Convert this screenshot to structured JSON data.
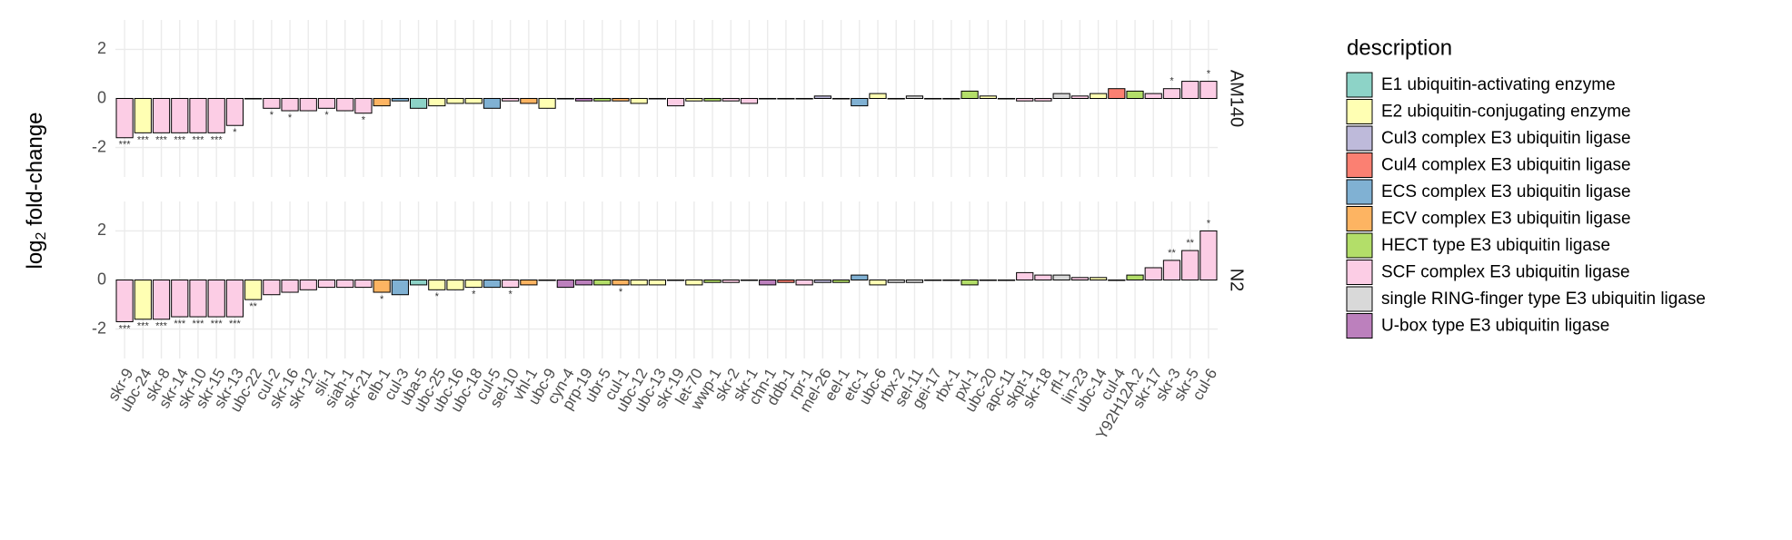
{
  "chart_data": {
    "type": "bar",
    "ylabel_parts": [
      "log",
      "2",
      " fold-change"
    ],
    "legend_title": "description",
    "ylim": [
      -3.2,
      3.2
    ],
    "yticks": [
      -2,
      0,
      2
    ],
    "grid": true,
    "groups": [
      {
        "name": "E1 ubiquitin-activating enzyme",
        "color": "#8DD3C7"
      },
      {
        "name": "E2 ubiquitin-conjugating enzyme",
        "color": "#FFFFB3"
      },
      {
        "name": "Cul3 complex E3 ubiquitin ligase",
        "color": "#BEBADA"
      },
      {
        "name": "Cul4 complex E3 ubiquitin ligase",
        "color": "#FB8072"
      },
      {
        "name": "ECS complex E3 ubiquitin ligase",
        "color": "#80B1D3"
      },
      {
        "name": "ECV complex E3 ubiquitin ligase",
        "color": "#FDB462"
      },
      {
        "name": "HECT type E3 ubiquitin ligase",
        "color": "#B3DE69"
      },
      {
        "name": "SCF complex E3 ubiquitin ligase",
        "color": "#FCCDE5"
      },
      {
        "name": "single RING-finger type E3 ubiquitin ligase",
        "color": "#D9D9D9"
      },
      {
        "name": "U-box type E3 ubiquitin ligase",
        "color": "#BC80BD"
      }
    ],
    "categories": [
      "skr-9",
      "ubc-24",
      "skr-8",
      "skr-14",
      "skr-10",
      "skr-15",
      "skr-13",
      "ubc-22",
      "cul-2",
      "skr-16",
      "skr-12",
      "sli-1",
      "siah-1",
      "skr-21",
      "elb-1",
      "cul-3",
      "uba-5",
      "ubc-25",
      "ubc-16",
      "ubc-18",
      "cul-5",
      "sel-10",
      "vhl-1",
      "ubc-9",
      "cyn-4",
      "prp-19",
      "ubr-5",
      "cul-1",
      "ubc-12",
      "ubc-13",
      "skr-19",
      "let-70",
      "wwp-1",
      "skr-2",
      "skr-1",
      "chn-1",
      "ddb-1",
      "rpr-1",
      "mel-26",
      "eel-1",
      "etc-1",
      "ubc-6",
      "rbx-2",
      "sel-11",
      "gei-17",
      "rbx-1",
      "pxl-1",
      "ubc-20",
      "apc-11",
      "skpt-1",
      "skr-18",
      "rfl-1",
      "lin-23",
      "ubc-14",
      "cul-4",
      "Y92H12A.2",
      "skr-17",
      "skr-3",
      "skr-5",
      "cul-6"
    ],
    "category_groups": [
      "SCF complex E3 ubiquitin ligase",
      "E2 ubiquitin-conjugating enzyme",
      "SCF complex E3 ubiquitin ligase",
      "SCF complex E3 ubiquitin ligase",
      "SCF complex E3 ubiquitin ligase",
      "SCF complex E3 ubiquitin ligase",
      "SCF complex E3 ubiquitin ligase",
      "E2 ubiquitin-conjugating enzyme",
      "SCF complex E3 ubiquitin ligase",
      "SCF complex E3 ubiquitin ligase",
      "SCF complex E3 ubiquitin ligase",
      "SCF complex E3 ubiquitin ligase",
      "SCF complex E3 ubiquitin ligase",
      "SCF complex E3 ubiquitin ligase",
      "ECV complex E3 ubiquitin ligase",
      "ECS complex E3 ubiquitin ligase",
      "E1 ubiquitin-activating enzyme",
      "E2 ubiquitin-conjugating enzyme",
      "E2 ubiquitin-conjugating enzyme",
      "E2 ubiquitin-conjugating enzyme",
      "ECS complex E3 ubiquitin ligase",
      "SCF complex E3 ubiquitin ligase",
      "ECV complex E3 ubiquitin ligase",
      "E2 ubiquitin-conjugating enzyme",
      "U-box type E3 ubiquitin ligase",
      "U-box type E3 ubiquitin ligase",
      "HECT type E3 ubiquitin ligase",
      "ECV complex E3 ubiquitin ligase",
      "E2 ubiquitin-conjugating enzyme",
      "E2 ubiquitin-conjugating enzyme",
      "SCF complex E3 ubiquitin ligase",
      "E2 ubiquitin-conjugating enzyme",
      "HECT type E3 ubiquitin ligase",
      "SCF complex E3 ubiquitin ligase",
      "SCF complex E3 ubiquitin ligase",
      "U-box type E3 ubiquitin ligase",
      "Cul4 complex E3 ubiquitin ligase",
      "SCF complex E3 ubiquitin ligase",
      "Cul3 complex E3 ubiquitin ligase",
      "HECT type E3 ubiquitin ligase",
      "ECS complex E3 ubiquitin ligase",
      "E2 ubiquitin-conjugating enzyme",
      "single RING-finger type E3 ubiquitin ligase",
      "single RING-finger type E3 ubiquitin ligase",
      "single RING-finger type E3 ubiquitin ligase",
      "single RING-finger type E3 ubiquitin ligase",
      "HECT type E3 ubiquitin ligase",
      "E2 ubiquitin-conjugating enzyme",
      "single RING-finger type E3 ubiquitin ligase",
      "SCF complex E3 ubiquitin ligase",
      "SCF complex E3 ubiquitin ligase",
      "single RING-finger type E3 ubiquitin ligase",
      "SCF complex E3 ubiquitin ligase",
      "E2 ubiquitin-conjugating enzyme",
      "Cul4 complex E3 ubiquitin ligase",
      "HECT type E3 ubiquitin ligase",
      "SCF complex E3 ubiquitin ligase",
      "SCF complex E3 ubiquitin ligase",
      "SCF complex E3 ubiquitin ligase",
      "SCF complex E3 ubiquitin ligase"
    ],
    "facets": [
      {
        "name": "AM140",
        "values": [
          -1.6,
          -1.4,
          -1.4,
          -1.4,
          -1.4,
          -1.4,
          -1.1,
          0,
          -0.4,
          -0.5,
          -0.5,
          -0.4,
          -0.5,
          -0.6,
          -0.3,
          -0.1,
          -0.4,
          -0.3,
          -0.2,
          -0.2,
          -0.4,
          -0.1,
          -0.2,
          -0.4,
          0,
          -0.1,
          -0.1,
          -0.1,
          -0.2,
          0,
          -0.3,
          -0.1,
          -0.1,
          -0.1,
          -0.2,
          0,
          0,
          0,
          0.1,
          0,
          -0.3,
          0.2,
          0,
          0.1,
          0,
          0,
          0.3,
          0.1,
          0,
          -0.1,
          -0.1,
          0.2,
          0.1,
          0.2,
          0.4,
          0.3,
          0.2,
          0.4,
          0.7,
          0.7
        ],
        "stars": [
          "***",
          "***",
          "***",
          "***",
          "***",
          "***",
          "*",
          null,
          "*",
          "*",
          null,
          "*",
          null,
          "*",
          null,
          null,
          null,
          null,
          null,
          null,
          null,
          null,
          null,
          null,
          null,
          null,
          null,
          null,
          null,
          null,
          null,
          null,
          null,
          null,
          null,
          null,
          null,
          null,
          null,
          null,
          null,
          null,
          null,
          null,
          null,
          null,
          null,
          null,
          null,
          null,
          null,
          null,
          null,
          null,
          null,
          null,
          null,
          "*",
          null,
          "*"
        ]
      },
      {
        "name": "N2",
        "values": [
          -1.7,
          -1.6,
          -1.6,
          -1.5,
          -1.5,
          -1.5,
          -1.5,
          -0.8,
          -0.6,
          -0.5,
          -0.4,
          -0.3,
          -0.3,
          -0.3,
          -0.5,
          -0.6,
          -0.2,
          -0.4,
          -0.4,
          -0.3,
          -0.3,
          -0.3,
          -0.2,
          0,
          -0.3,
          -0.2,
          -0.2,
          -0.2,
          -0.2,
          -0.2,
          0,
          -0.2,
          -0.1,
          -0.1,
          0,
          -0.2,
          -0.1,
          -0.2,
          -0.1,
          -0.1,
          0.2,
          -0.2,
          -0.1,
          -0.1,
          0,
          0,
          -0.2,
          0,
          0,
          0.3,
          0.2,
          0.2,
          0.1,
          0.1,
          0,
          0.2,
          0.5,
          0.8,
          1.2,
          2.0
        ],
        "stars": [
          "***",
          "***",
          "***",
          "***",
          "***",
          "***",
          "***",
          "**",
          null,
          null,
          null,
          null,
          null,
          null,
          "*",
          null,
          null,
          "*",
          null,
          "*",
          null,
          "*",
          null,
          null,
          null,
          null,
          null,
          "*",
          null,
          null,
          null,
          null,
          null,
          null,
          null,
          null,
          null,
          null,
          null,
          null,
          null,
          null,
          null,
          null,
          null,
          null,
          null,
          null,
          null,
          null,
          null,
          null,
          null,
          null,
          null,
          null,
          null,
          "**",
          "**",
          "*"
        ]
      }
    ]
  }
}
